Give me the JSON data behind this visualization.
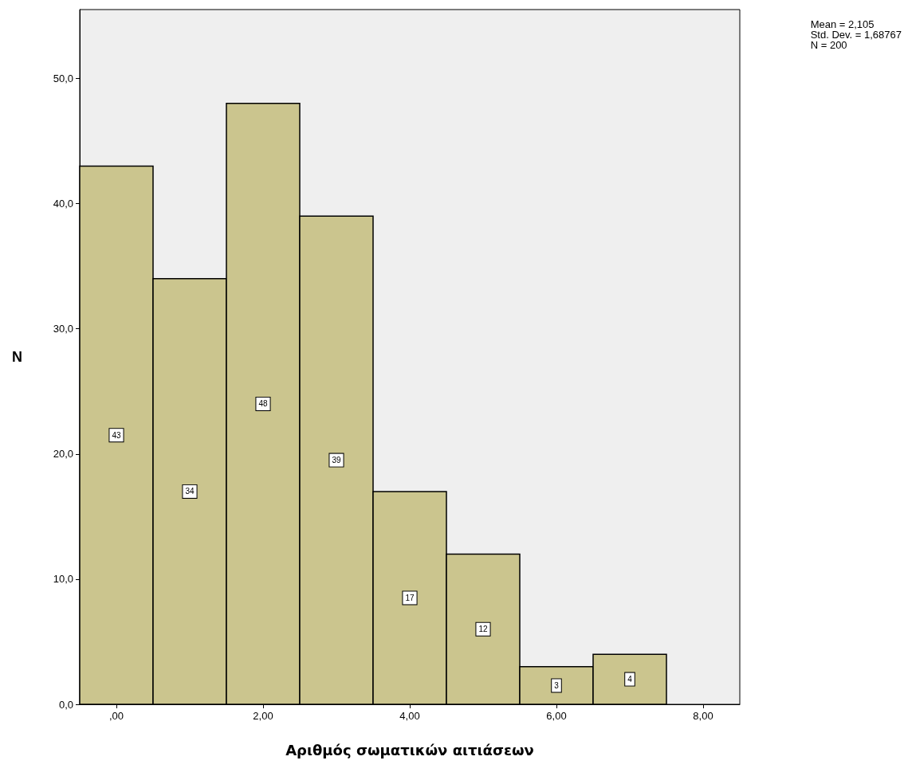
{
  "chart_data": {
    "type": "histogram",
    "xlabel": "Αριθμός σωματικών αιτιάσεων",
    "ylabel": "N",
    "bins": [
      -0.5,
      0.5,
      1.5,
      2.5,
      3.5,
      4.5,
      5.5,
      6.5,
      7.5
    ],
    "values": [
      43,
      34,
      48,
      39,
      17,
      12,
      3,
      4
    ],
    "color": "#cbc58e",
    "xlim": [
      -0.5,
      8.5
    ],
    "xticks": [
      {
        "value": 0,
        "label": ",00"
      },
      {
        "value": 2,
        "label": "2,00"
      },
      {
        "value": 4,
        "label": "4,00"
      },
      {
        "value": 6,
        "label": "6,00"
      },
      {
        "value": 8,
        "label": "8,00"
      }
    ],
    "ylim": [
      0,
      55.5
    ],
    "yticks": [
      {
        "value": 0,
        "label": "0,0"
      },
      {
        "value": 10,
        "label": "10,0"
      },
      {
        "value": 20,
        "label": "20,0"
      },
      {
        "value": 30,
        "label": "30,0"
      },
      {
        "value": 40,
        "label": "40,0"
      },
      {
        "value": 50,
        "label": "50,0"
      }
    ],
    "data_labels": true,
    "grid": false,
    "annotations": [
      "Mean = 2,105\nStd. Dev. = 1,68767\nN = 200"
    ]
  }
}
